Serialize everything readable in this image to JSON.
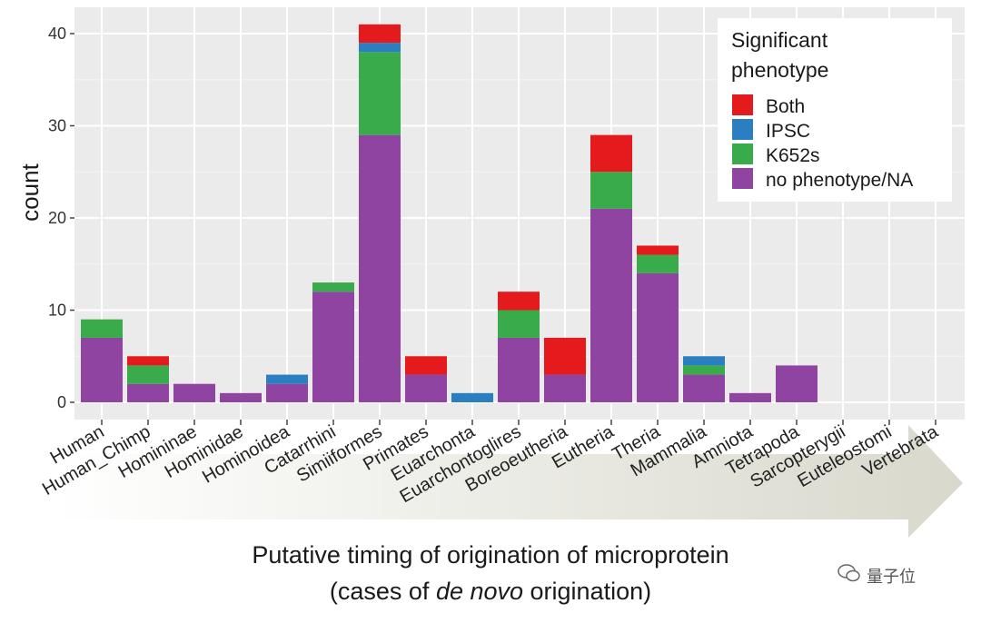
{
  "chart_data": {
    "type": "bar",
    "stacked": true,
    "categories": [
      "Human",
      "Human_Chimp",
      "Homininae",
      "Hominidae",
      "Hominoidea",
      "Catarrhini",
      "Simiiformes",
      "Primates",
      "Euarchonta",
      "Euarchontoglires",
      "Boreoeutheria",
      "Eutheria",
      "Theria",
      "Mammalia",
      "Amniota",
      "Tetrapoda",
      "Sarcopterygii",
      "Euteleostomi",
      "Vertebrata"
    ],
    "series": [
      {
        "name": "no phenotype/NA",
        "color": "#8e44a0",
        "values": [
          7,
          2,
          2,
          1,
          2,
          12,
          29,
          3,
          0,
          7,
          3,
          21,
          14,
          3,
          1,
          4,
          0,
          0,
          0
        ]
      },
      {
        "name": "K652s",
        "color": "#3aab4a",
        "values": [
          2,
          2,
          0,
          0,
          0,
          1,
          9,
          0,
          0,
          3,
          0,
          4,
          2,
          1,
          0,
          0,
          0,
          0,
          0
        ]
      },
      {
        "name": "IPSC",
        "color": "#2b7fc0",
        "values": [
          0,
          0,
          0,
          0,
          1,
          0,
          1,
          0,
          1,
          0,
          0,
          0,
          0,
          1,
          0,
          0,
          0,
          0,
          0
        ]
      },
      {
        "name": "Both",
        "color": "#e41a1c",
        "values": [
          0,
          1,
          0,
          0,
          0,
          0,
          2,
          2,
          0,
          2,
          4,
          4,
          1,
          0,
          0,
          0,
          0,
          0,
          0
        ]
      }
    ],
    "ylabel": "count",
    "ylim": [
      0,
      42
    ],
    "yticks": [
      0,
      10,
      20,
      30,
      40
    ],
    "xlabel_line1": "Putative timing of origination of microprotein",
    "xlabel_line2_pre": "(cases of ",
    "xlabel_line2_italic": "de novo",
    "xlabel_line2_post": " origination)",
    "legend_title_line1": "Significant",
    "legend_title_line2": "phenotype",
    "legend_order": [
      "Both",
      "IPSC",
      "K652s",
      "no phenotype/NA"
    ],
    "legend_position": "top-right",
    "grid": true
  },
  "watermark": {
    "text": "量子位"
  }
}
